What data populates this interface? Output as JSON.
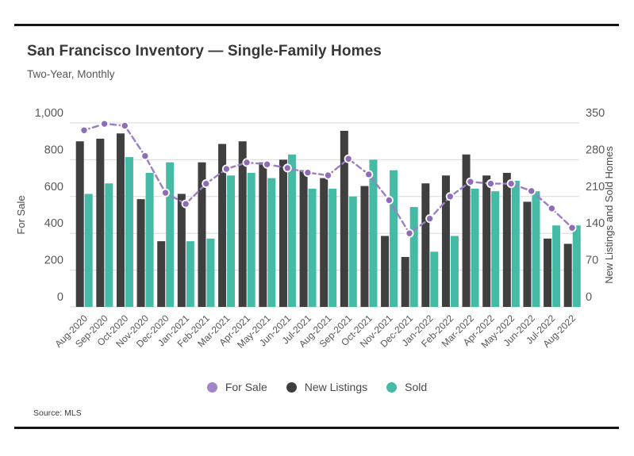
{
  "header": {
    "title": "San Francisco Inventory — Single-Family Homes",
    "subtitle": "Two-Year, Monthly"
  },
  "source_note": "Source:  MLS",
  "chart_data": {
    "type": "combo (bar + line)",
    "title": "San Francisco Inventory — Single-Family Homes",
    "subtitle": "Two-Year, Monthly",
    "grid": "horizontal gridlines on",
    "legend_position": "bottom-center",
    "categories": [
      "Aug-2020",
      "Sep-2020",
      "Oct-2020",
      "Nov-2020",
      "Dec-2020",
      "Jan-2021",
      "Feb-2021",
      "Mar-2021",
      "Apr-2021",
      "May-2021",
      "Jun-2021",
      "Jul-2021",
      "Aug-2021",
      "Sep-2021",
      "Oct-2021",
      "Nov-2021",
      "Dec-2021",
      "Jan-2022",
      "Feb-2022",
      "Mar-2022",
      "Apr-2022",
      "May-2022",
      "Jun-2022",
      "Jul-2022",
      "Aug-2022"
    ],
    "left_axis": {
      "label": "For Sale",
      "max": 1000,
      "min": 0,
      "ticks": [
        {
          "value": 1000,
          "label": "1,000"
        },
        {
          "value": 800,
          "label": "800"
        },
        {
          "value": 600,
          "label": "600"
        },
        {
          "value": 400,
          "label": "400"
        },
        {
          "value": 200,
          "label": "200"
        },
        {
          "value": 0,
          "label": "0"
        }
      ]
    },
    "right_axis": {
      "label": "New Listings and Sold Homes",
      "max": 350,
      "min": 0,
      "ticks": [
        {
          "value": 350,
          "label": "350"
        },
        {
          "value": 280,
          "label": "280"
        },
        {
          "value": 210,
          "label": "210"
        },
        {
          "value": 140,
          "label": "140"
        },
        {
          "value": 70,
          "label": "70"
        },
        {
          "value": 0,
          "label": "0"
        }
      ]
    },
    "series": [
      {
        "name": "For Sale",
        "type": "line",
        "axis": "left",
        "style": "dashed with circular markers",
        "color": "#9C7EC5",
        "point_color": "#8E6CB8",
        "legend_color": "#A185C6",
        "values": [
          960,
          995,
          985,
          820,
          620,
          560,
          670,
          750,
          785,
          775,
          755,
          730,
          715,
          805,
          720,
          580,
          400,
          480,
          600,
          680,
          670,
          670,
          630,
          535,
          430
        ]
      },
      {
        "name": "New Listings",
        "type": "bar",
        "axis": "right",
        "color": "#3F3F3F",
        "legend_color": "#3F3F3F",
        "values": [
          315,
          320,
          330,
          205,
          125,
          215,
          275,
          310,
          315,
          275,
          280,
          260,
          245,
          335,
          230,
          135,
          95,
          235,
          250,
          290,
          250,
          255,
          200,
          130,
          120
        ]
      },
      {
        "name": "Sold",
        "type": "bar",
        "axis": "right",
        "color": "#45BAA5",
        "legend_color": "#45BAA5",
        "values": [
          215,
          235,
          285,
          255,
          275,
          125,
          130,
          250,
          255,
          245,
          290,
          225,
          225,
          210,
          280,
          260,
          190,
          105,
          135,
          225,
          220,
          240,
          220,
          155,
          155
        ]
      }
    ]
  }
}
